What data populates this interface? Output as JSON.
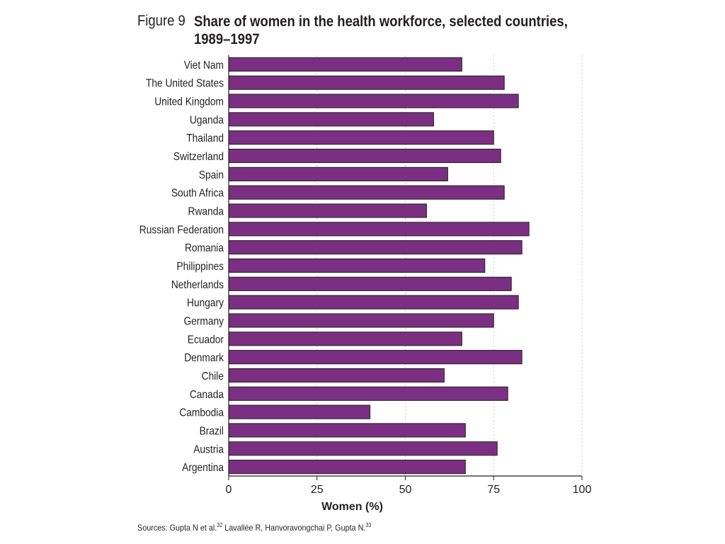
{
  "figure": {
    "number": "Figure 9",
    "title": "Share of women in the health workforce, selected countries, 1989–1997"
  },
  "source": {
    "prefix": "Sources: Gupta N et al.",
    "ref1": "32",
    "middle": " Lavallée R, Hanvoravongchai P, Gupta N.",
    "ref2": "33"
  },
  "colors": {
    "bar": "#7b2f82",
    "bar_outline": "#231f20",
    "grid": "#c8c8c8",
    "axis": "#231f20"
  },
  "chart_data": {
    "type": "bar",
    "orientation": "horizontal",
    "categories": [
      "Viet Nam",
      "The United States",
      "United Kingdom",
      "Uganda",
      "Thailand",
      "Switzerland",
      "Spain",
      "South Africa",
      "Rwanda",
      "Russian Federation",
      "Romania",
      "Philippines",
      "Netherlands",
      "Hungary",
      "Germany",
      "Ecuador",
      "Denmark",
      "Chile",
      "Canada",
      "Cambodia",
      "Brazil",
      "Austria",
      "Argentina"
    ],
    "values": [
      66,
      78,
      82,
      58,
      75,
      77,
      62,
      78,
      56,
      85,
      83,
      72.5,
      80,
      82,
      75,
      66,
      83,
      61,
      79,
      40,
      67,
      76,
      67
    ],
    "xlabel": "Women (%)",
    "ylabel": "",
    "xlim": [
      0,
      100
    ],
    "xticks": [
      0,
      25,
      50,
      75,
      100
    ],
    "grid": "vertical dotted"
  }
}
